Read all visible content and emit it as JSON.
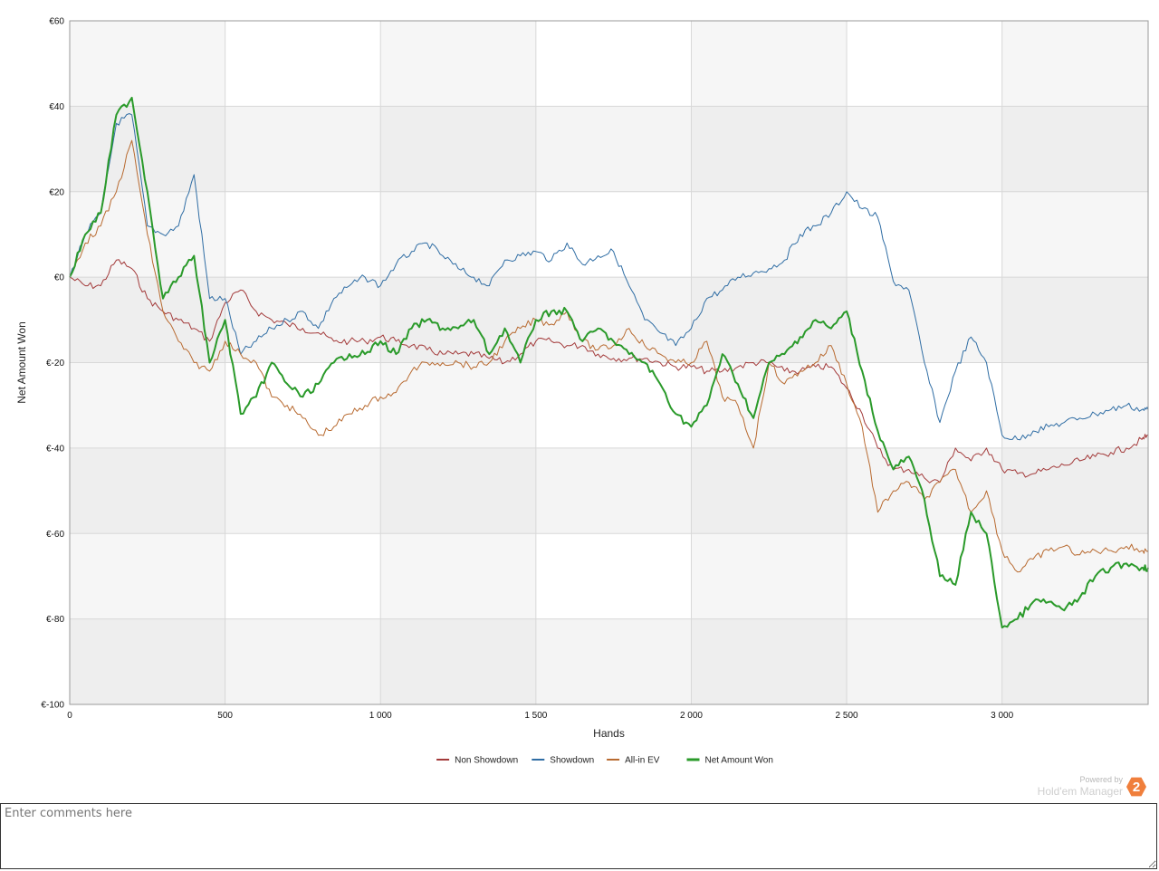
{
  "chart_data": {
    "type": "line",
    "title": "",
    "xlabel": "Hands",
    "ylabel": "Net Amount Won",
    "xlim": [
      0,
      3470
    ],
    "ylim": [
      -100,
      60
    ],
    "x_ticks": [
      0,
      500,
      1000,
      1500,
      2000,
      2500,
      3000
    ],
    "x_tick_labels": [
      "0",
      "500",
      "1 000",
      "1 500",
      "2 000",
      "2 500",
      "3 000"
    ],
    "y_ticks": [
      60,
      40,
      20,
      0,
      -20,
      -40,
      -60,
      -80,
      -100
    ],
    "y_tick_labels": [
      "€60",
      "€40",
      "€20",
      "€0",
      "€-20",
      "€-40",
      "€-60",
      "€-80",
      "€-100"
    ],
    "grid": true,
    "legend_position": "bottom-center",
    "x": [
      0,
      50,
      100,
      150,
      200,
      250,
      300,
      350,
      400,
      450,
      500,
      550,
      600,
      650,
      700,
      750,
      800,
      850,
      900,
      950,
      1000,
      1050,
      1100,
      1150,
      1200,
      1250,
      1300,
      1350,
      1400,
      1450,
      1500,
      1550,
      1600,
      1650,
      1700,
      1750,
      1800,
      1850,
      1900,
      1950,
      2000,
      2050,
      2100,
      2150,
      2200,
      2250,
      2300,
      2350,
      2400,
      2450,
      2500,
      2550,
      2600,
      2650,
      2700,
      2750,
      2800,
      2850,
      2900,
      2950,
      3000,
      3050,
      3100,
      3150,
      3200,
      3250,
      3300,
      3350,
      3400,
      3450,
      3470
    ],
    "series": [
      {
        "name": "Non Showdown",
        "color": "#a33a3a",
        "width": 1,
        "values": [
          0,
          -2,
          -2,
          4,
          2,
          -5,
          -8,
          -10,
          -12,
          -15,
          -6,
          -3,
          -8,
          -10,
          -11,
          -12,
          -13,
          -15,
          -15,
          -15,
          -14,
          -15,
          -16,
          -17,
          -18,
          -18,
          -18,
          -19,
          -20,
          -18,
          -15,
          -15,
          -16,
          -16,
          -18,
          -19,
          -19,
          -19,
          -20,
          -21,
          -21,
          -22,
          -22,
          -21,
          -20,
          -20,
          -22,
          -22,
          -21,
          -21,
          -26,
          -32,
          -40,
          -45,
          -45,
          -47,
          -48,
          -40,
          -43,
          -40,
          -45,
          -46,
          -46,
          -45,
          -44,
          -43,
          -42,
          -41,
          -40,
          -38,
          -37
        ]
      },
      {
        "name": "Showdown",
        "color": "#2f6da4",
        "width": 1,
        "values": [
          0,
          10,
          15,
          36,
          38,
          12,
          10,
          12,
          24,
          -5,
          -5,
          -18,
          -15,
          -12,
          -10,
          -8,
          -12,
          -5,
          -2,
          0,
          -2,
          3,
          6,
          8,
          5,
          2,
          0,
          -2,
          4,
          5,
          6,
          4,
          8,
          3,
          5,
          6,
          -2,
          -10,
          -13,
          -16,
          -12,
          -5,
          -3,
          0,
          1,
          2,
          4,
          10,
          12,
          15,
          20,
          16,
          14,
          -1,
          -3,
          -20,
          -34,
          -22,
          -14,
          -20,
          -37,
          -38,
          -36,
          -35,
          -34,
          -33,
          -32,
          -31,
          -30,
          -31,
          -31
        ]
      },
      {
        "name": "All-in EV",
        "color": "#b86a30",
        "width": 1,
        "values": [
          0,
          8,
          12,
          20,
          32,
          10,
          -8,
          -15,
          -20,
          -22,
          -15,
          -18,
          -20,
          -28,
          -30,
          -33,
          -37,
          -35,
          -32,
          -30,
          -28,
          -27,
          -22,
          -20,
          -20,
          -20,
          -21,
          -20,
          -15,
          -12,
          -10,
          -11,
          -8,
          -15,
          -17,
          -16,
          -12,
          -16,
          -18,
          -20,
          -20,
          -15,
          -28,
          -30,
          -40,
          -20,
          -25,
          -22,
          -20,
          -16,
          -25,
          -35,
          -55,
          -50,
          -48,
          -52,
          -48,
          -45,
          -55,
          -50,
          -64,
          -69,
          -66,
          -64,
          -63,
          -65,
          -64,
          -64,
          -63,
          -64,
          -64
        ]
      },
      {
        "name": "Net Amount Won",
        "color": "#2a9a2a",
        "width": 2,
        "values": [
          0,
          10,
          15,
          38,
          42,
          20,
          -5,
          0,
          5,
          -20,
          -10,
          -32,
          -28,
          -20,
          -25,
          -28,
          -25,
          -20,
          -18,
          -18,
          -15,
          -18,
          -12,
          -10,
          -12,
          -12,
          -10,
          -18,
          -12,
          -20,
          -10,
          -8,
          -8,
          -15,
          -12,
          -15,
          -18,
          -20,
          -25,
          -32,
          -35,
          -30,
          -18,
          -25,
          -33,
          -20,
          -18,
          -14,
          -10,
          -12,
          -8,
          -22,
          -36,
          -45,
          -42,
          -52,
          -70,
          -72,
          -55,
          -60,
          -82,
          -80,
          -76,
          -76,
          -78,
          -75,
          -70,
          -68,
          -67,
          -68,
          -68
        ]
      }
    ]
  },
  "powered_by": {
    "text": "Powered by",
    "brand": "Hold'em Manager",
    "logo_mark": "2",
    "logo_color": "#f07f3c"
  },
  "comments": {
    "placeholder": "Enter comments here"
  }
}
